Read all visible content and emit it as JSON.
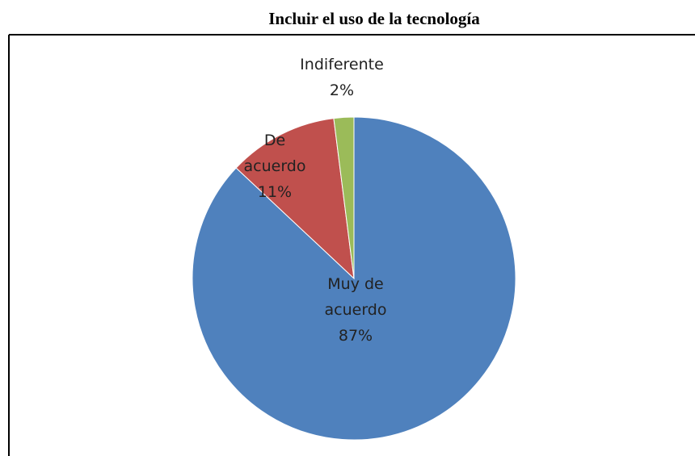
{
  "chart_data": {
    "type": "pie",
    "title": "Incluir el uso de la tecnología",
    "categories": [
      "Muy de acuerdo",
      "De acuerdo",
      "Indiferente"
    ],
    "values": [
      87,
      11,
      2
    ],
    "value_labels": [
      "87%",
      "11%",
      "2%"
    ],
    "colors": [
      "#4f81bd",
      "#c0504d",
      "#9bbb59"
    ]
  }
}
